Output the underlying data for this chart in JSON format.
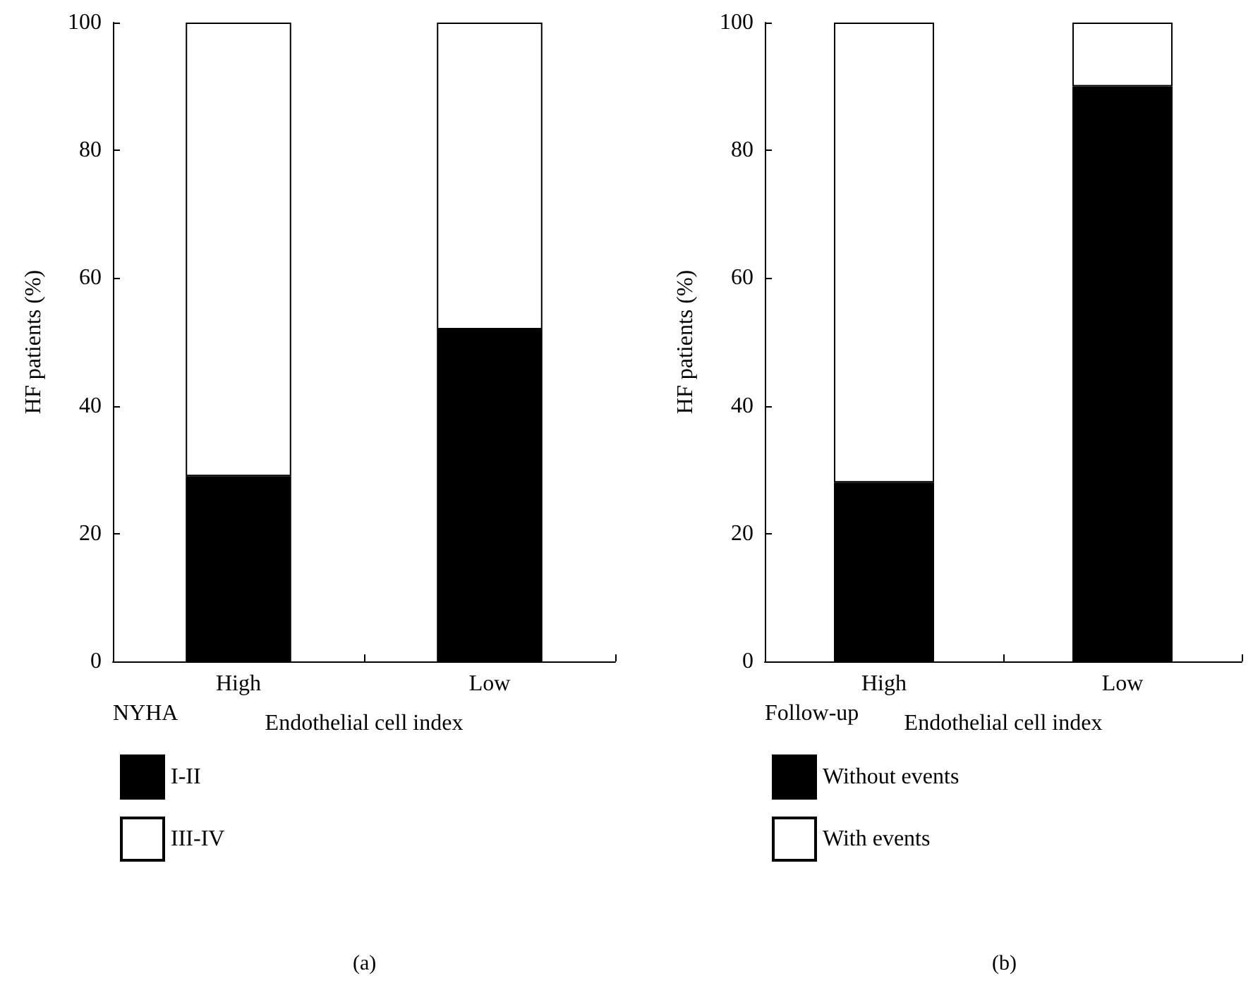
{
  "chart_data": [
    {
      "type": "bar",
      "stacked": true,
      "categories": [
        "High",
        "Low"
      ],
      "xlabel": "Endothelial cell index",
      "ylabel": "HF patients (%)",
      "ylim": [
        0,
        100
      ],
      "yticks": [
        0,
        20,
        40,
        60,
        80,
        100
      ],
      "legend": "bottom left",
      "legend_title": "NYHA",
      "annotations": [
        "(a)"
      ],
      "series": [
        {
          "name": "I-II",
          "color": "#000000",
          "values": [
            29,
            52
          ]
        },
        {
          "name": "III-IV",
          "color": "#ffffff",
          "values": [
            71,
            48
          ]
        }
      ]
    },
    {
      "type": "bar",
      "stacked": true,
      "categories": [
        "High",
        "Low"
      ],
      "xlabel": "Endothelial cell index",
      "ylabel": "HF patients (%)",
      "ylim": [
        0,
        100
      ],
      "yticks": [
        0,
        20,
        40,
        60,
        80,
        100
      ],
      "legend": "bottom left",
      "legend_title": "Follow-up",
      "annotations": [
        "(b)"
      ],
      "series": [
        {
          "name": "Without events",
          "color": "#000000",
          "values": [
            28,
            90
          ]
        },
        {
          "name": "With events",
          "color": "#ffffff",
          "values": [
            72,
            10
          ]
        }
      ]
    }
  ]
}
